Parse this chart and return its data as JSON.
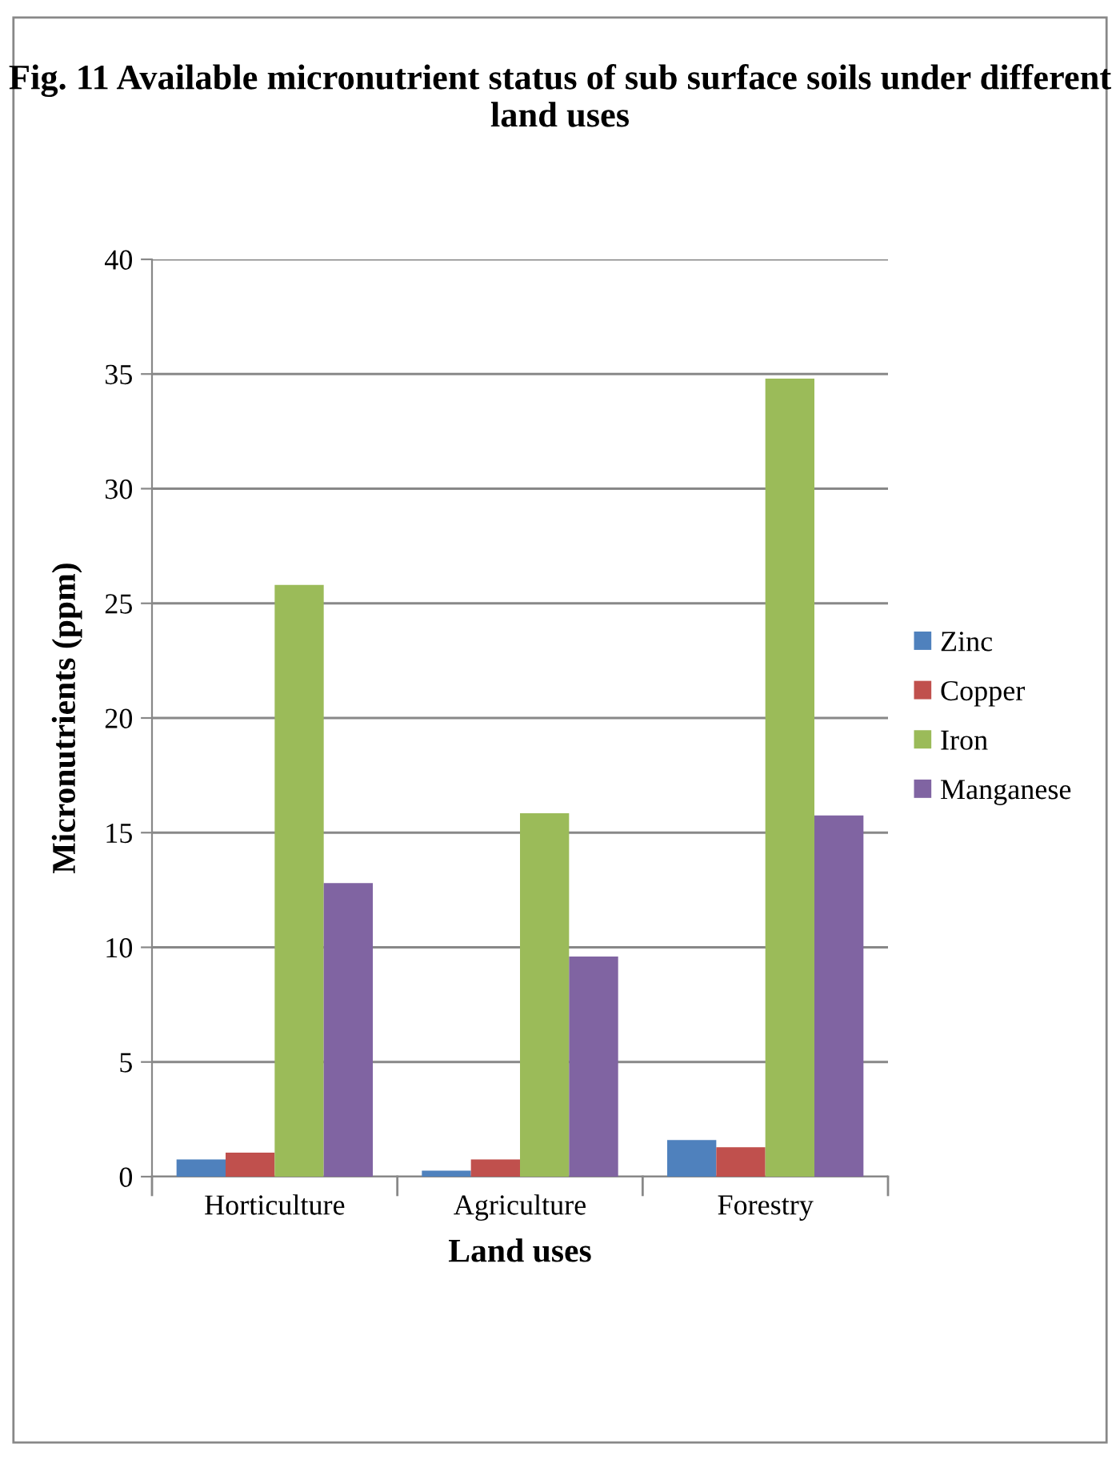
{
  "chart_data": {
    "type": "bar",
    "title": "Fig. 11 Available micronutrient status of sub surface soils under different land uses",
    "xlabel": "Land uses",
    "ylabel": "Micronutrients (ppm)",
    "categories": [
      "Horticulture",
      "Agriculture",
      "Forestry"
    ],
    "series": [
      {
        "name": "Zinc",
        "color": "#4f81bd",
        "values": [
          0.75,
          0.26,
          1.6
        ]
      },
      {
        "name": "Copper",
        "color": "#c0504d",
        "values": [
          1.05,
          0.75,
          1.28
        ]
      },
      {
        "name": "Iron",
        "color": "#9bbb59",
        "values": [
          25.8,
          15.85,
          34.8
        ]
      },
      {
        "name": "Manganese",
        "color": "#8064a2",
        "values": [
          12.8,
          9.6,
          15.75
        ]
      }
    ],
    "ylim": [
      0,
      40
    ],
    "yticks": [
      0,
      5,
      10,
      15,
      20,
      25,
      30,
      35,
      40
    ],
    "grid": "y",
    "legend": "right"
  }
}
